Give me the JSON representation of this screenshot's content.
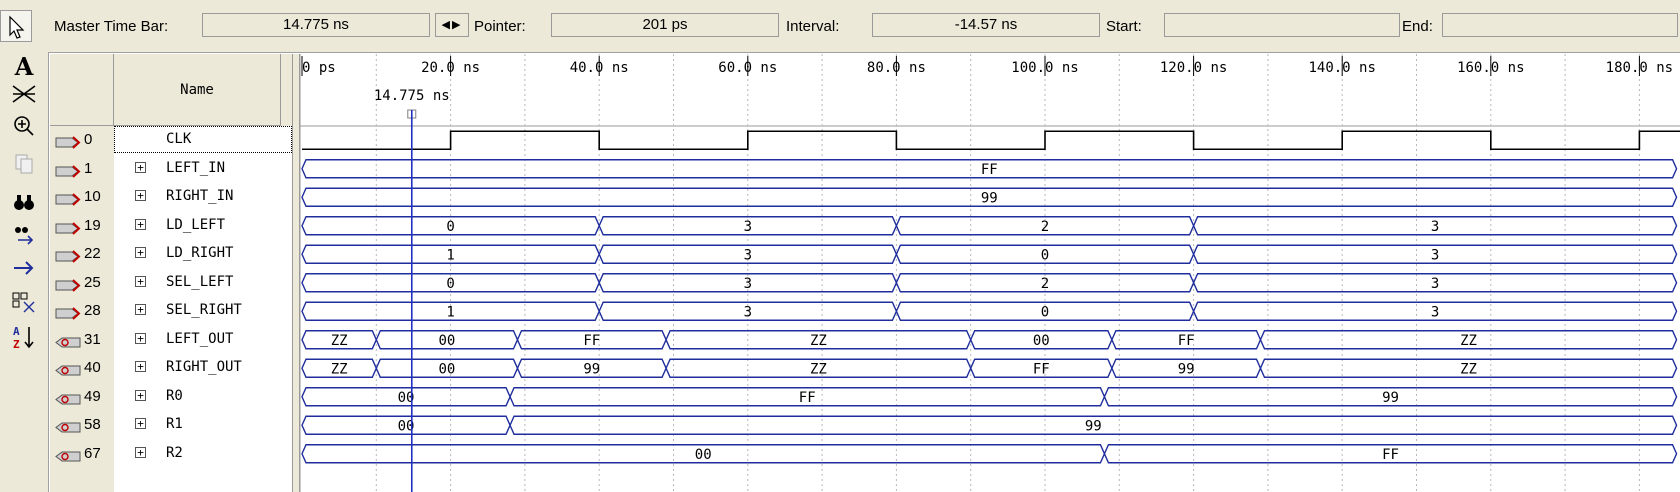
{
  "toolbar": {
    "master_time_bar_label": "Master Time Bar:",
    "master_time_bar_value": "14.775 ns",
    "pointer_label": "Pointer:",
    "pointer_value": "201 ps",
    "interval_label": "Interval:",
    "interval_value": "-14.57 ns",
    "start_label": "Start:",
    "start_value": "",
    "end_label": "End:",
    "end_value": ""
  },
  "tools": [
    "selection-tool-icon",
    "text-tool-icon",
    "waveform-edit-icon",
    "zoom-icon",
    "copy-icon",
    "find-icon",
    "find-next-icon",
    "goto-icon",
    "group-icon",
    "sort-icon"
  ],
  "names_header": "Name",
  "ruler": {
    "ticks": [
      "0 ps",
      "20.0 ns",
      "40.0 ns",
      "60.0 ns",
      "80.0 ns",
      "100.0 ns",
      "120.0 ns",
      "140.0 ns",
      "160.0 ns",
      "180.0 ns"
    ],
    "marker_label": "14.775 ns",
    "marker_time_ns": 14.775
  },
  "signals": [
    {
      "index": "0",
      "name": "CLK",
      "type": "input",
      "expandable": false,
      "kind": "clock",
      "period_ns": 40,
      "first_rise_ns": 20
    },
    {
      "index": "1",
      "name": "LEFT_IN",
      "type": "input",
      "expandable": true,
      "segments": [
        {
          "s": 0,
          "e": 185,
          "v": "FF"
        }
      ]
    },
    {
      "index": "10",
      "name": "RIGHT_IN",
      "type": "input",
      "expandable": true,
      "segments": [
        {
          "s": 0,
          "e": 185,
          "v": "99"
        }
      ]
    },
    {
      "index": "19",
      "name": "LD_LEFT",
      "type": "input",
      "expandable": true,
      "segments": [
        {
          "s": 0,
          "e": 40,
          "v": "0"
        },
        {
          "s": 40,
          "e": 80,
          "v": "3"
        },
        {
          "s": 80,
          "e": 120,
          "v": "2"
        },
        {
          "s": 120,
          "e": 185,
          "v": "3"
        }
      ]
    },
    {
      "index": "22",
      "name": "LD_RIGHT",
      "type": "input",
      "expandable": true,
      "segments": [
        {
          "s": 0,
          "e": 40,
          "v": "1"
        },
        {
          "s": 40,
          "e": 80,
          "v": "3"
        },
        {
          "s": 80,
          "e": 120,
          "v": "0"
        },
        {
          "s": 120,
          "e": 185,
          "v": "3"
        }
      ]
    },
    {
      "index": "25",
      "name": "SEL_LEFT",
      "type": "input",
      "expandable": true,
      "segments": [
        {
          "s": 0,
          "e": 40,
          "v": "0"
        },
        {
          "s": 40,
          "e": 80,
          "v": "3"
        },
        {
          "s": 80,
          "e": 120,
          "v": "2"
        },
        {
          "s": 120,
          "e": 185,
          "v": "3"
        }
      ]
    },
    {
      "index": "28",
      "name": "SEL_RIGHT",
      "type": "input",
      "expandable": true,
      "segments": [
        {
          "s": 0,
          "e": 40,
          "v": "1"
        },
        {
          "s": 40,
          "e": 80,
          "v": "3"
        },
        {
          "s": 80,
          "e": 120,
          "v": "0"
        },
        {
          "s": 120,
          "e": 185,
          "v": "3"
        }
      ]
    },
    {
      "index": "31",
      "name": "LEFT_OUT",
      "type": "output",
      "expandable": true,
      "segments": [
        {
          "s": 0,
          "e": 10,
          "v": "ZZ"
        },
        {
          "s": 10,
          "e": 29,
          "v": "00"
        },
        {
          "s": 29,
          "e": 49,
          "v": "FF"
        },
        {
          "s": 49,
          "e": 90,
          "v": "ZZ"
        },
        {
          "s": 90,
          "e": 109,
          "v": "00"
        },
        {
          "s": 109,
          "e": 129,
          "v": "FF"
        },
        {
          "s": 129,
          "e": 185,
          "v": "ZZ"
        }
      ]
    },
    {
      "index": "40",
      "name": "RIGHT_OUT",
      "type": "output",
      "expandable": true,
      "segments": [
        {
          "s": 0,
          "e": 10,
          "v": "ZZ"
        },
        {
          "s": 10,
          "e": 29,
          "v": "00"
        },
        {
          "s": 29,
          "e": 49,
          "v": "99"
        },
        {
          "s": 49,
          "e": 90,
          "v": "ZZ"
        },
        {
          "s": 90,
          "e": 109,
          "v": "FF"
        },
        {
          "s": 109,
          "e": 129,
          "v": "99"
        },
        {
          "s": 129,
          "e": 185,
          "v": "ZZ"
        }
      ]
    },
    {
      "index": "49",
      "name": "R0",
      "type": "output",
      "expandable": true,
      "segments": [
        {
          "s": 0,
          "e": 28,
          "v": "00"
        },
        {
          "s": 28,
          "e": 108,
          "v": "FF"
        },
        {
          "s": 108,
          "e": 185,
          "v": "99"
        }
      ]
    },
    {
      "index": "58",
      "name": "R1",
      "type": "output",
      "expandable": true,
      "segments": [
        {
          "s": 0,
          "e": 28,
          "v": "00"
        },
        {
          "s": 28,
          "e": 185,
          "v": "99"
        }
      ]
    },
    {
      "index": "67",
      "name": "R2",
      "type": "output",
      "expandable": true,
      "segments": [
        {
          "s": 0,
          "e": 108,
          "v": "00"
        },
        {
          "s": 108,
          "e": 185,
          "v": "FF"
        }
      ]
    }
  ],
  "colors": {
    "wave": "#1f2e9c",
    "grid": "#b8b8b8",
    "marker": "#2030c0",
    "clock": "#000000",
    "chrome": "#ece9d8"
  }
}
